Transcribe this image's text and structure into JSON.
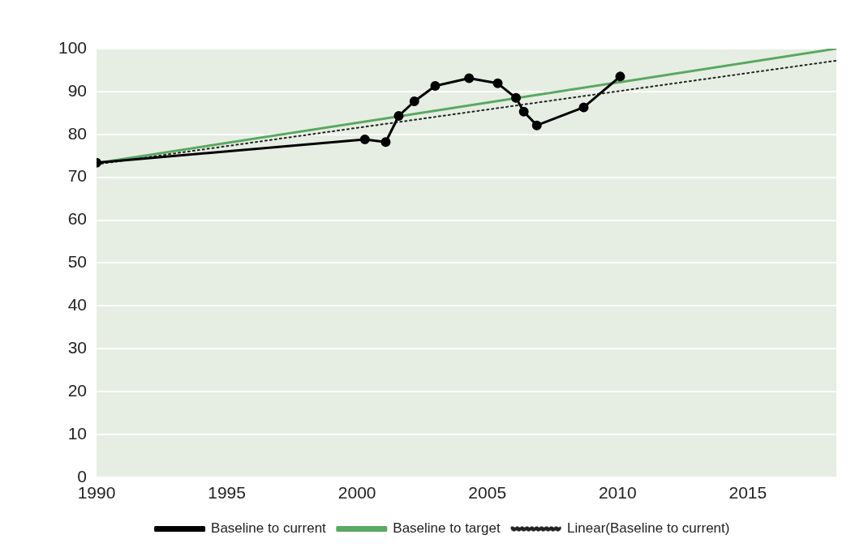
{
  "chart_data": {
    "type": "line",
    "xlim": [
      1990,
      2018.4
    ],
    "xticks": [
      1990,
      1995,
      2000,
      2005,
      2010,
      2015
    ],
    "ylim": [
      0,
      100
    ],
    "yticks": [
      0,
      10,
      20,
      30,
      40,
      50,
      60,
      70,
      80,
      90,
      100
    ],
    "grid": "y",
    "legend": "bottom",
    "series": [
      {
        "name": "Baseline to current",
        "color": "#000000",
        "marker": "circle",
        "line_style": "solid",
        "x": [
          1990,
          2000.3,
          2001.1,
          2001.6,
          2002.2,
          2003.0,
          2004.3,
          2005.4,
          2006.1,
          2006.4,
          2006.9,
          2008.7,
          2010.1
        ],
        "values": [
          73.4,
          78.8,
          78.2,
          84.3,
          87.7,
          91.3,
          93.1,
          91.9,
          88.5,
          85.3,
          82.1,
          86.3,
          93.5
        ]
      },
      {
        "name": "Baseline to target",
        "color": "#5aa862",
        "marker": "none",
        "line_style": "solid",
        "x": [
          1990,
          2018.4
        ],
        "values": [
          73.3,
          100
        ]
      },
      {
        "name": "Linear(Baseline to current)",
        "color": "#222222",
        "marker": "none",
        "line_style": "dotted",
        "x": [
          1990,
          2018.4
        ],
        "values": [
          73,
          97.2
        ]
      }
    ]
  }
}
